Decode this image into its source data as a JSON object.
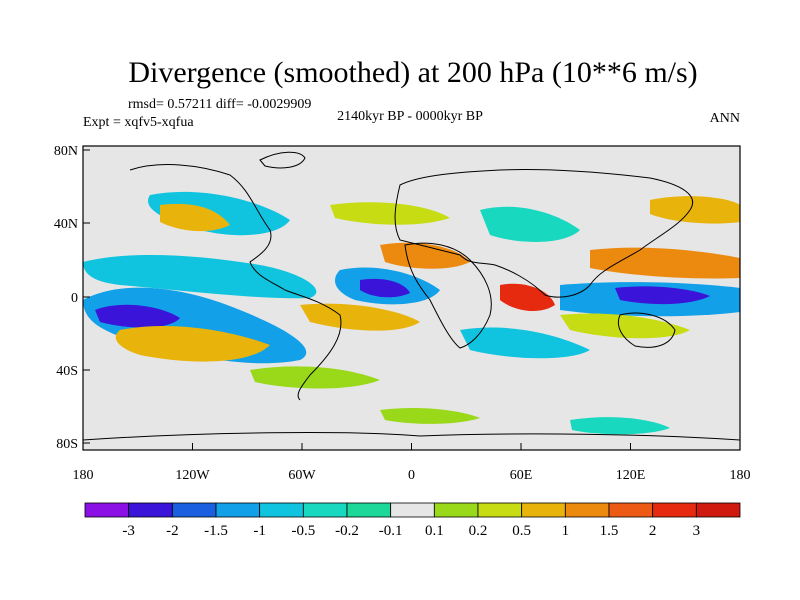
{
  "title": "Divergence (smoothed) at 200 hPa (10**6 m/s)",
  "stats_line": "rmsd= 0.57211 diff= -0.0029909",
  "experiment": "Expt = xqfv5-xqfua",
  "period": "2140kyr BP - 0000kyr BP",
  "season": "ANN",
  "lat_ticks": [
    "80N",
    "40N",
    "0",
    "40S",
    "80S"
  ],
  "lon_ticks": [
    "180",
    "120W",
    "60W",
    "0",
    "60E",
    "120E",
    "180"
  ],
  "colorbar": {
    "labels": [
      "-3",
      "-2",
      "-1.5",
      "-1",
      "-0.5",
      "-0.2",
      "-0.1",
      "0.1",
      "0.2",
      "0.5",
      "1",
      "1.5",
      "2",
      "3"
    ],
    "colors": [
      "#8a10e6",
      "#3a14d8",
      "#1a5fe0",
      "#12a0e8",
      "#10c4e0",
      "#18d8c0",
      "#1ed89a",
      "#e6e6e6",
      "#9ad81a",
      "#c8dc14",
      "#e8b40c",
      "#ec8a10",
      "#ec5a14",
      "#e62a10",
      "#d01a10"
    ]
  },
  "colors": {
    "land_outline": "#000000",
    "neutral": "#e6e6e6"
  }
}
